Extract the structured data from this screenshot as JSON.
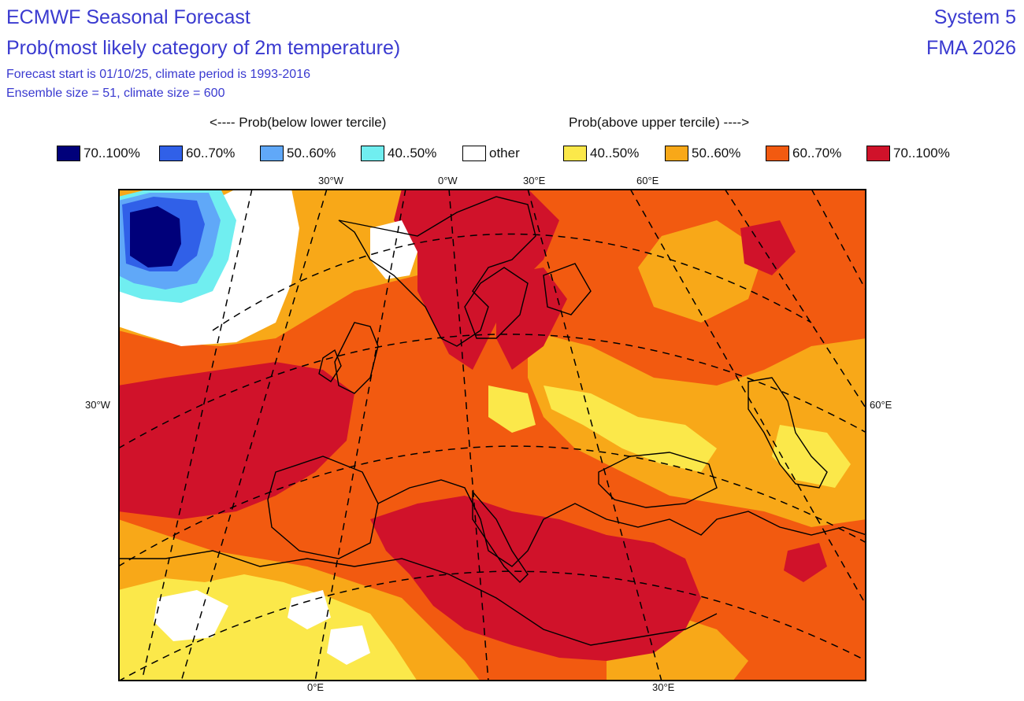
{
  "header": {
    "title": "ECMWF Seasonal Forecast",
    "subtitle": "Prob(most likely category of 2m temperature)",
    "forecast_info": "Forecast start is 01/10/25, climate period is 1993-2016",
    "ensemble_info": "Ensemble size = 51, climate size = 600",
    "system": "System 5",
    "period": "FMA 2026"
  },
  "legend": {
    "below_label": "<---- Prob(below lower tercile)",
    "above_label": "Prob(above upper tercile) ---->",
    "items": [
      {
        "label": "70..100%",
        "color": "#00007a"
      },
      {
        "label": "60..70%",
        "color": "#3060e8"
      },
      {
        "label": "50..60%",
        "color": "#60a8f8"
      },
      {
        "label": "40..50%",
        "color": "#70eef0"
      },
      {
        "label": "other",
        "color": "#ffffff"
      },
      {
        "label": "40..50%",
        "color": "#fbe84a"
      },
      {
        "label": "50..60%",
        "color": "#f8a818"
      },
      {
        "label": "60..70%",
        "color": "#f25a10"
      },
      {
        "label": "70..100%",
        "color": "#d0122a"
      }
    ]
  },
  "axes": {
    "top": [
      "30°W",
      "0°W",
      "30°E",
      "60°E"
    ],
    "left": "30°W",
    "right": "60°E",
    "bottom": [
      "0°E",
      "30°E"
    ]
  }
}
